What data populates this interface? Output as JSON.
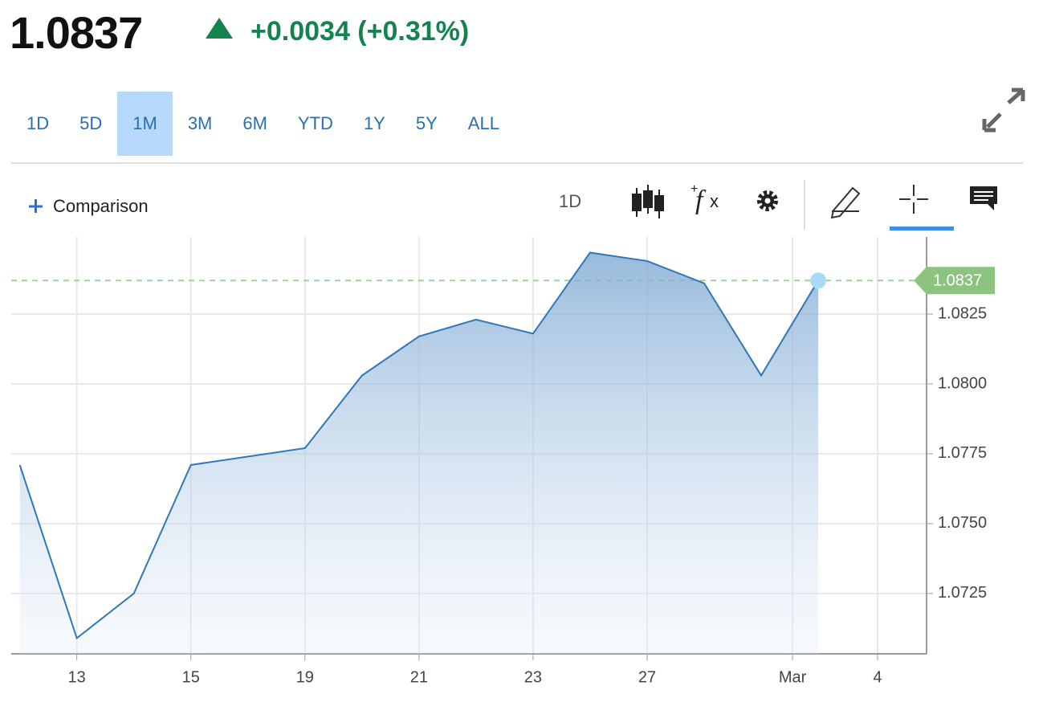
{
  "header": {
    "price": "1.0837",
    "change": "+0.0034 (+0.31%)"
  },
  "ranges": [
    "1D",
    "5D",
    "1M",
    "3M",
    "6M",
    "YTD",
    "1Y",
    "5Y",
    "ALL"
  ],
  "active_range": 2,
  "toolbar": {
    "comparison": "Comparison",
    "interval": "1D"
  },
  "chart_data": {
    "type": "area",
    "x": [
      -1,
      0,
      1,
      2,
      4,
      5,
      6,
      7,
      8,
      9,
      10,
      11,
      12,
      13
    ],
    "values": [
      1.0771,
      1.0709,
      1.0725,
      1.0771,
      1.0777,
      1.0803,
      1.0817,
      1.0823,
      1.0818,
      1.0847,
      1.0844,
      1.0836,
      1.0803,
      1.0837
    ],
    "color": "#2f78b5",
    "xlim": [
      -1.15,
      14.9
    ],
    "xticks": [
      {
        "value": 0,
        "label": "13"
      },
      {
        "value": 2,
        "label": "15"
      },
      {
        "value": 4,
        "label": "19"
      },
      {
        "value": 6,
        "label": "21"
      },
      {
        "value": 8,
        "label": "23"
      },
      {
        "value": 10,
        "label": "27"
      },
      {
        "value": 12.55,
        "label": "Mar"
      },
      {
        "value": 14.04,
        "label": "4"
      }
    ],
    "ylim": [
      1.07034,
      1.08526
    ],
    "yticks": [
      1.0725,
      {
        "value": 1.075,
        "label": "1.0750"
      },
      1.0775,
      {
        "value": 1.08,
        "label": "1.0800"
      },
      1.0825
    ],
    "last_value": 1.0837,
    "grid": true
  }
}
